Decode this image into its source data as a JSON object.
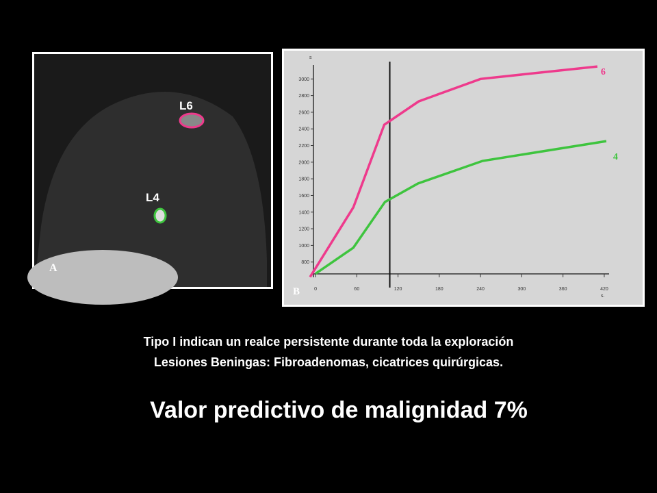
{
  "slide": {
    "caption_line1": "Tipo I indican un realce persistente durante toda la exploración",
    "caption_line2": "Lesiones Beningas: Fibroadenomas, cicatrices quirúrgicas.",
    "headline": "Valor predictivo de malignidad 7%",
    "image_label": "A",
    "chart_label": "B",
    "lesion_top": "L6",
    "lesion_bottom": "L4"
  },
  "chart_data": {
    "type": "line",
    "ylabel": "s",
    "xlabel": "s.",
    "series": [
      {
        "name": "6",
        "color": "#ee3a8c",
        "x": [
          -8,
          55,
          100,
          150,
          240,
          410
        ],
        "values": [
          620,
          1457,
          2450,
          2730,
          3000,
          3150
        ]
      },
      {
        "name": "4",
        "color": "#3ec43e",
        "x": [
          0,
          55,
          101,
          149,
          243,
          423
        ],
        "values": [
          660,
          972,
          1522,
          1744,
          2015,
          2253
        ]
      }
    ],
    "vline": 108,
    "xlim": [
      -15,
      440
    ],
    "xticks": [
      0,
      60,
      120,
      180,
      240,
      300,
      360,
      420
    ],
    "ylim": [
      600,
      3200
    ],
    "yticks": [
      800,
      1000,
      1200,
      1400,
      1600,
      1800,
      2000,
      2200,
      2400,
      2600,
      2800,
      3000
    ]
  }
}
